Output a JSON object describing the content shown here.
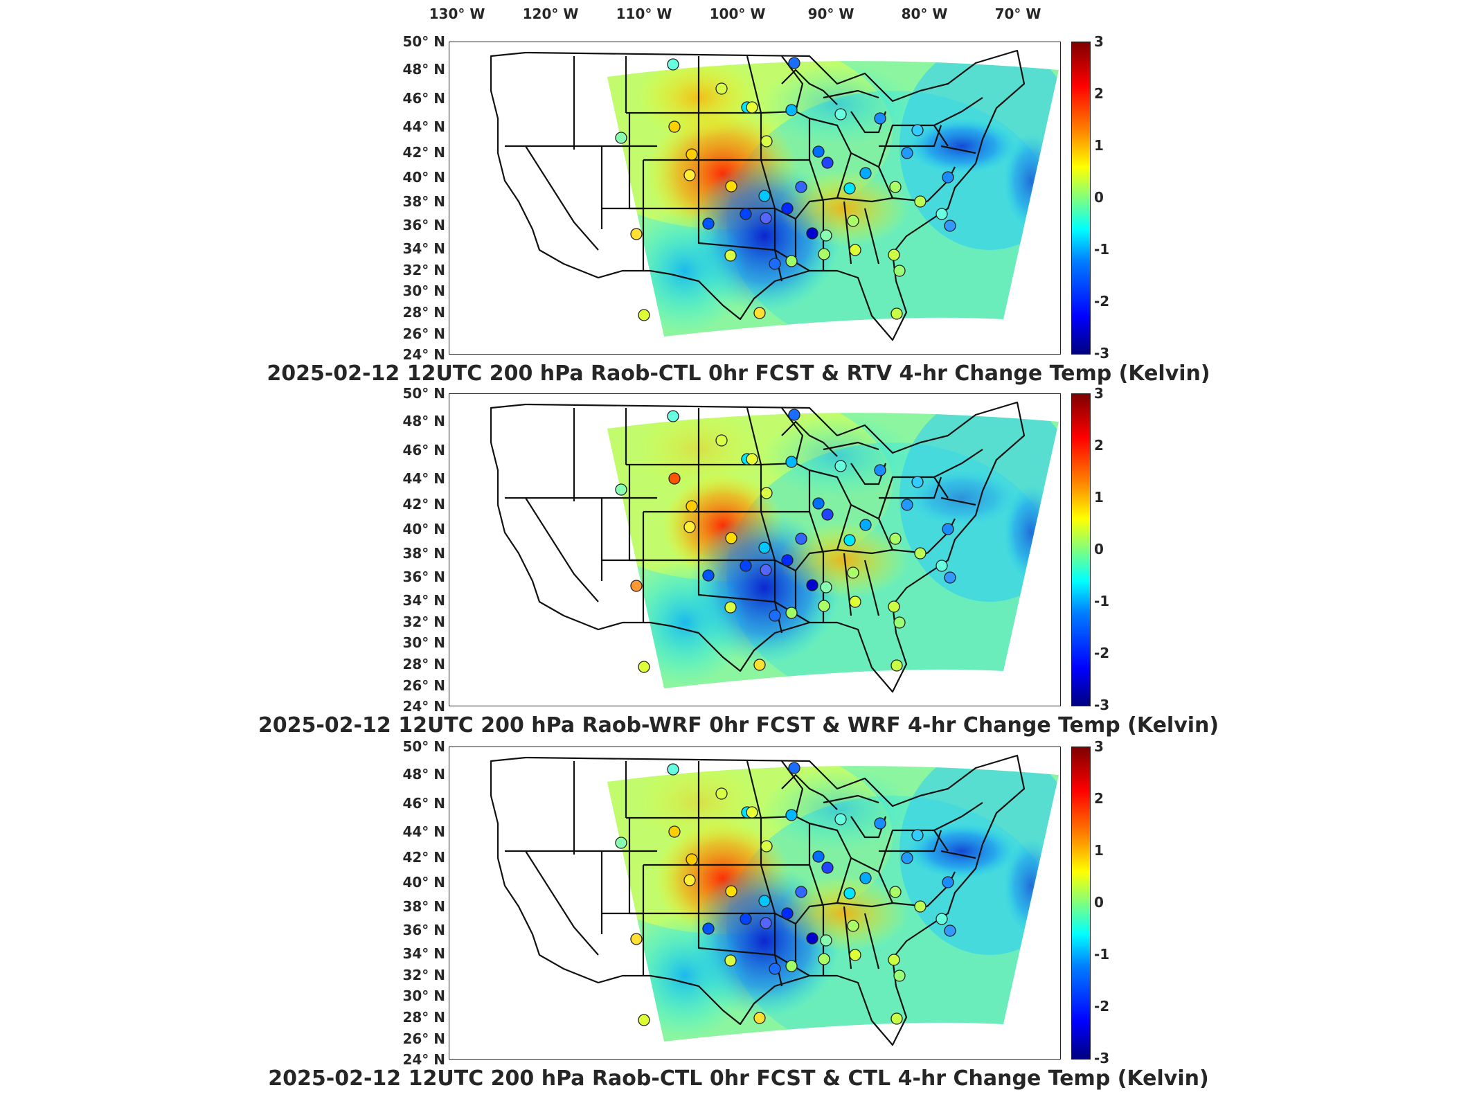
{
  "top_axis": {
    "longitude_labels": [
      "130° W",
      "120° W",
      "110° W",
      "100° W",
      "90° W",
      "80° W",
      "70° W"
    ]
  },
  "latitude_labels": [
    "50° N",
    "48° N",
    "46° N",
    "44° N",
    "42° N",
    "40° N",
    "38° N",
    "36° N",
    "34° N",
    "32° N",
    "30° N",
    "28° N",
    "26° N",
    "24° N"
  ],
  "colorbar": {
    "ticks": [
      "3",
      "2",
      "1",
      "0",
      "-1",
      "-2",
      "-3"
    ],
    "colors": [
      "#00007f",
      "#0000ff",
      "#0080ff",
      "#00ffff",
      "#7fff7f",
      "#ffff00",
      "#ff8000",
      "#ff0000",
      "#7f0000"
    ]
  },
  "panels": [
    {
      "title": "2025-02-12 12UTC 200 hPa Raob-CTL 0hr FCST & RTV 4-hr Change Temp (Kelvin)"
    },
    {
      "title": "2025-02-12 12UTC 200 hPa Raob-WRF 0hr FCST & WRF 4-hr Change Temp (Kelvin)"
    },
    {
      "title": "2025-02-12 12UTC 200 hPa Raob-CTL 0hr FCST & CTL 4-hr Change Temp (Kelvin)"
    }
  ]
}
